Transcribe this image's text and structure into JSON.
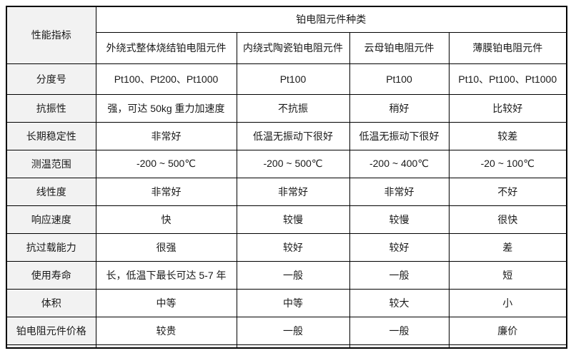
{
  "table": {
    "corner_header": "性能指标",
    "group_header": "铂电阻元件种类",
    "column_headers": [
      "外绕式整体烧结铂电阻元件",
      "内绕式陶瓷铂电阻元件",
      "云母铂电阻元件",
      "薄膜铂电阻元件"
    ],
    "rows": [
      {
        "label": "分度号",
        "values": [
          "Pt100、Pt200、Pt1000",
          "Pt100",
          "Pt100",
          "Pt10、Pt100、Pt1000"
        ]
      },
      {
        "label": "抗振性",
        "values": [
          "强，可达 50kg 重力加速度",
          "不抗振",
          "稍好",
          "比较好"
        ]
      },
      {
        "label": "长期稳定性",
        "values": [
          "非常好",
          "低温无振动下很好",
          "低温无振动下很好",
          "较差"
        ]
      },
      {
        "label": "测温范围",
        "values": [
          "-200 ~ 500℃",
          "-200 ~ 500℃",
          "-200 ~ 400℃",
          "-20 ~ 100℃"
        ]
      },
      {
        "label": "线性度",
        "values": [
          "非常好",
          "非常好",
          "非常好",
          "不好"
        ]
      },
      {
        "label": "响应速度",
        "values": [
          "快",
          "较慢",
          "较慢",
          "很快"
        ]
      },
      {
        "label": "抗过载能力",
        "values": [
          "很强",
          "较好",
          "较好",
          "差"
        ]
      },
      {
        "label": "使用寿命",
        "values": [
          "长，低温下最长可达 5-7 年",
          "一般",
          "一般",
          "短"
        ]
      },
      {
        "label": "体积",
        "values": [
          "中等",
          "中等",
          "较大",
          "小"
        ]
      },
      {
        "label": "铂电阻元件价格",
        "values": [
          "较贵",
          "一般",
          "一般",
          "廉价"
        ]
      }
    ],
    "colors": {
      "label_bg": "#f2f2f2",
      "border": "#000000",
      "text": "#1a1a1a"
    }
  }
}
